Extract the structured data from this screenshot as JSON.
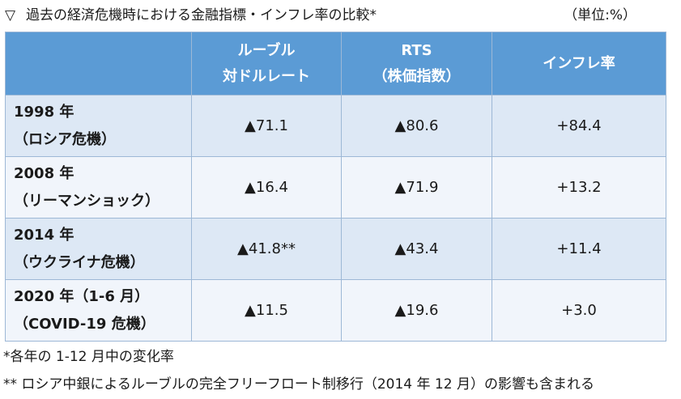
{
  "title": {
    "marker": "▽",
    "text": "過去の経済危機時における金融指標・インフレ率の比較*",
    "unit": "（単位:%）"
  },
  "table": {
    "headers": [
      {
        "line1": "",
        "line2": ""
      },
      {
        "line1": "ルーブル",
        "line2": "対ドルレート"
      },
      {
        "line1": "RTS",
        "line2": "（株価指数）"
      },
      {
        "line1": "インフレ率",
        "line2": ""
      }
    ],
    "rows": [
      {
        "year": "1998 年",
        "event": "（ロシア危機）",
        "ruble": "▲71.1",
        "rts": "▲80.6",
        "inflation": "+84.4"
      },
      {
        "year": "2008 年",
        "event": "（リーマンショック）",
        "ruble": "▲16.4",
        "rts": "▲71.9",
        "inflation": "+13.2"
      },
      {
        "year": "2014 年",
        "event": "（ウクライナ危機）",
        "ruble": "▲41.8**",
        "rts": "▲43.4",
        "inflation": "+11.4"
      },
      {
        "year": "2020 年（1-6 月）",
        "event": "（COVID-19 危機）",
        "ruble": "▲11.5",
        "rts": "▲19.6",
        "inflation": "+3.0"
      }
    ]
  },
  "notes": [
    "*各年の 1-12 月中の変化率",
    "** ロシア中銀によるルーブルの完全フリーフロート制移行（2014 年 12 月）の影響も含まれる"
  ]
}
